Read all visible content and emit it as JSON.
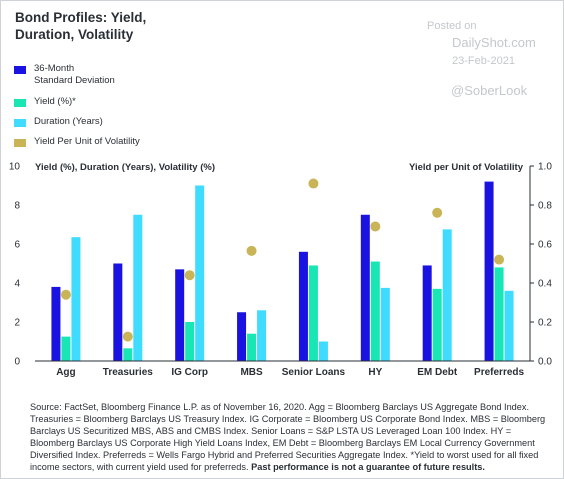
{
  "title_line1": "Bond Profiles: Yield,",
  "title_line2": "Duration, Volatility",
  "watermark": {
    "posted": "Posted on",
    "site": "DailyShot.com",
    "date": "23-Feb-2021",
    "handle": "@SoberLook"
  },
  "legend": [
    {
      "label_line1": "36-Month",
      "label_line2": "Standard Deviation",
      "color": "#1a12e0"
    },
    {
      "label_line1": "Yield (%)*",
      "label_line2": "",
      "color": "#18e6b4"
    },
    {
      "label_line1": "Duration (Years)",
      "label_line2": "",
      "color": "#3fdcff"
    },
    {
      "label_line1": "Yield Per Unit of Volatility",
      "label_line2": "",
      "color": "#c9b458"
    }
  ],
  "footnote": {
    "text": "Source: FactSet, Bloomberg Finance L.P. as of November 16, 2020. Agg = Bloomberg Barclays US Aggregate Bond Index. Treasuries = Bloomberg Barclays US Treasury Index. IG Corporate = Bloomberg US Corporate Bond Index. MBS = Bloomberg Barclays US Securitized MBS, ABS and CMBS Index. Senior Loans = S&P LSTA US Leveraged Loan 100 Index. HY = Bloomberg Barclays US Corporate High Yield Loans Index, EM Debt = Bloomberg Barclays EM Local Currency Government Diversified Index. Preferreds = Wells Fargo Hybrid and Preferred Securities Aggregate Index. *Yield to worst used for all fixed income sectors, with current yield used for preferreds. ",
    "bold": "Past performance is not a guarantee of future results."
  },
  "chart_data": {
    "type": "bar",
    "categories": [
      "Agg",
      "Treasuries",
      "IG Corp",
      "MBS",
      "Senior Loans",
      "HY",
      "EM Debt",
      "Preferreds"
    ],
    "series": [
      {
        "name": "36-Month Standard Deviation",
        "axis": "left",
        "color": "#1a12e0",
        "values": [
          3.8,
          5.0,
          4.7,
          2.5,
          5.6,
          7.5,
          4.9,
          9.2
        ]
      },
      {
        "name": "Yield (%)*",
        "axis": "left",
        "color": "#18e6b4",
        "values": [
          1.25,
          0.65,
          2.0,
          1.4,
          4.9,
          5.1,
          3.7,
          4.8
        ]
      },
      {
        "name": "Duration (Years)",
        "axis": "left",
        "color": "#3fdcff",
        "values": [
          6.35,
          7.5,
          9.0,
          2.6,
          1.0,
          3.75,
          6.75,
          3.6
        ]
      },
      {
        "name": "Yield Per Unit of Volatility",
        "axis": "right",
        "color": "#c9b458",
        "values": [
          0.34,
          0.125,
          0.44,
          0.565,
          0.91,
          0.69,
          0.76,
          0.52
        ]
      }
    ],
    "ylabel_left": "Yield (%), Duration (Years), Volatility (%)",
    "ylabel_right": "Yield per Unit of Volatility",
    "ylim_left": [
      0,
      10
    ],
    "yticks_left": [
      "0",
      "2",
      "4",
      "6",
      "8",
      "10"
    ],
    "ylim_right": [
      0,
      1.0
    ],
    "yticks_right": [
      "0.0",
      "0.2",
      "0.4",
      "0.6",
      "0.8",
      "1.0"
    ],
    "grid": false,
    "legend_position": "top-left"
  }
}
